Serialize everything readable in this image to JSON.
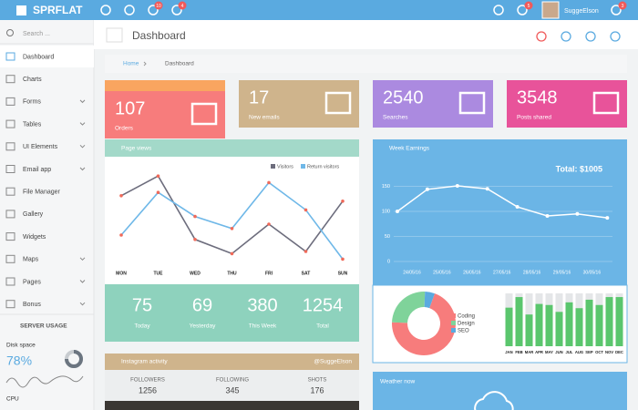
{
  "topbar": {
    "logo": "SPRFLAT",
    "badges": [
      10,
      4,
      5,
      3
    ],
    "user": "SuggeElson"
  },
  "sidebar": {
    "search": "Search ...",
    "menu": [
      "Dashboard",
      "Charts",
      "Forms",
      "Tables",
      "UI Elements",
      "Email app",
      "File Manager",
      "Gallery",
      "Widgets",
      "Maps",
      "Pages",
      "Bonus"
    ],
    "server_usage": "SERVER USAGE",
    "disk_label": "Disk space",
    "disk_value": "78%",
    "cpu_label": "CPU"
  },
  "header": {
    "title": "Dashboard",
    "breadcrumb": [
      "Home",
      "Dashboard"
    ]
  },
  "tiles": [
    {
      "value": 107,
      "label": "Orders",
      "color": "#f77c7c"
    },
    {
      "value": 17,
      "label": "New emails",
      "color": "#cfb48c"
    },
    {
      "value": 2540,
      "label": "Searches",
      "color": "#ab8ae0"
    },
    {
      "value": 3548,
      "label": "Posts shared",
      "color": "#e8539a"
    }
  ],
  "page_views": {
    "title": "Page views",
    "type": "line",
    "categories": [
      "MON",
      "TUE",
      "WED",
      "THU",
      "FRI",
      "SAT",
      "SUN"
    ],
    "ylim": [
      0,
      100
    ],
    "series": [
      {
        "name": "Visitors",
        "color": "#6d6d7d",
        "values": [
          71,
          89,
          31,
          18,
          45,
          20,
          66
        ]
      },
      {
        "name": "Return visitors",
        "color": "#6fb8e8",
        "values": [
          35,
          74,
          52,
          41,
          83,
          58,
          13
        ]
      }
    ],
    "stats": [
      {
        "value": 75,
        "label": "Today"
      },
      {
        "value": 69,
        "label": "Yesterday"
      },
      {
        "value": 380,
        "label": "This Week"
      },
      {
        "value": 1254,
        "label": "Total"
      }
    ]
  },
  "week_earnings": {
    "title": "Week Earnings",
    "total": "Total: $1005",
    "type": "line",
    "categories": [
      "24/05/16",
      "25/05/16",
      "26/05/16",
      "27/05/16",
      "28/05/16",
      "29/05/16",
      "30/05/16",
      null
    ],
    "values": [
      100,
      144,
      151,
      145,
      109,
      91,
      95,
      87
    ],
    "ylim": [
      0,
      160
    ],
    "yticks": [
      0,
      50,
      100,
      150
    ]
  },
  "skills": {
    "type": "pie",
    "categories": [
      "Coding",
      "Design",
      "SEO"
    ],
    "values": [
      70,
      25,
      5
    ],
    "colors": [
      "#f77c7c",
      "#7fd39a",
      "#5aaae0"
    ]
  },
  "monthly": {
    "type": "bar",
    "categories": [
      "JAN",
      "FEB",
      "MAR",
      "APR",
      "MAY",
      "JUN",
      "JUL",
      "AUG",
      "SEP",
      "OCT",
      "NOV",
      "DEC"
    ],
    "values": [
      73,
      93,
      60,
      80,
      78,
      65,
      83,
      72,
      88,
      78,
      93,
      93
    ],
    "ylim": [
      0,
      100
    ],
    "color": "#5ac66d"
  },
  "instagram": {
    "title": "Instagram activity",
    "handle": "@SuggeElson",
    "stats": [
      {
        "label": "FOLLOWERS",
        "value": 1256
      },
      {
        "label": "FOLLOWING",
        "value": 345
      },
      {
        "label": "SHOTS",
        "value": 176
      }
    ]
  },
  "weather": {
    "title": "Weather now"
  }
}
